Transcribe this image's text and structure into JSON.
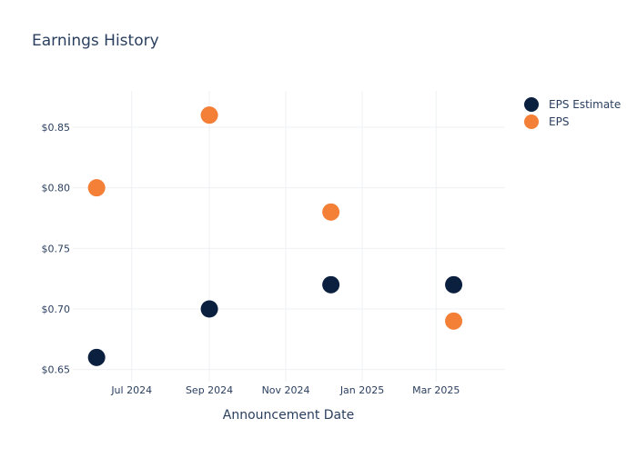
{
  "chart_data": {
    "type": "scatter",
    "title": "Earnings History",
    "xlabel": "Announcement Date",
    "ylabel": "",
    "x_axis_type": "date",
    "xlim": [
      "2024-05-15",
      "2025-04-25"
    ],
    "ylim": [
      0.64,
      0.88
    ],
    "x_ticks": [
      {
        "date": "2024-07-01",
        "label": "Jul 2024"
      },
      {
        "date": "2024-09-01",
        "label": "Sep 2024"
      },
      {
        "date": "2024-11-01",
        "label": "Nov 2024"
      },
      {
        "date": "2025-01-01",
        "label": "Jan 2025"
      },
      {
        "date": "2025-03-01",
        "label": "Mar 2025"
      }
    ],
    "y_ticks": [
      {
        "value": 0.65,
        "label": "$0.65"
      },
      {
        "value": 0.7,
        "label": "$0.70"
      },
      {
        "value": 0.75,
        "label": "$0.75"
      },
      {
        "value": 0.8,
        "label": "$0.80"
      },
      {
        "value": 0.85,
        "label": "$0.85"
      }
    ],
    "grid": true,
    "legend_position": "top-right",
    "series": [
      {
        "name": "EPS Estimate",
        "color": "#0b1f3f",
        "points": [
          {
            "x": "2024-06-03",
            "y": 0.66
          },
          {
            "x": "2024-09-01",
            "y": 0.7
          },
          {
            "x": "2024-12-07",
            "y": 0.72
          },
          {
            "x": "2025-03-15",
            "y": 0.72
          }
        ]
      },
      {
        "name": "EPS",
        "color": "#f47f36",
        "points": [
          {
            "x": "2024-06-03",
            "y": 0.8
          },
          {
            "x": "2024-09-01",
            "y": 0.86
          },
          {
            "x": "2024-12-07",
            "y": 0.78
          },
          {
            "x": "2025-03-15",
            "y": 0.69
          }
        ]
      }
    ]
  }
}
